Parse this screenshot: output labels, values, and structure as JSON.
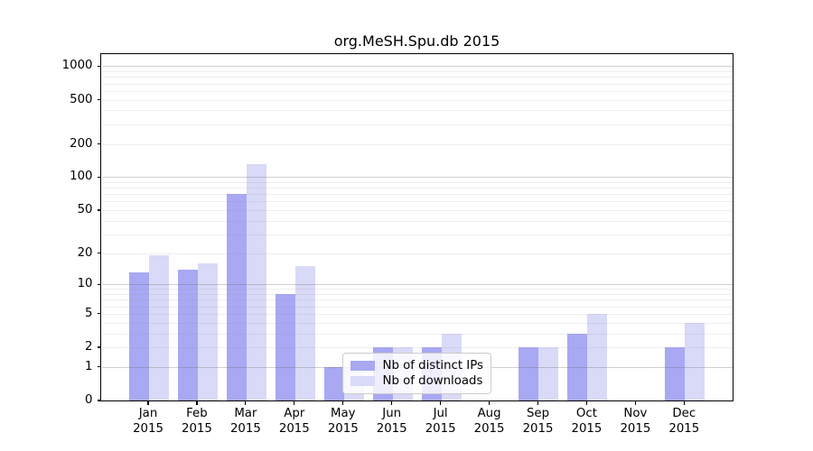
{
  "chart_data": {
    "type": "bar",
    "title": "org.MeSH.Spu.db 2015",
    "categories": [
      "Jan",
      "Feb",
      "Mar",
      "Apr",
      "May",
      "Jun",
      "Jul",
      "Aug",
      "Sep",
      "Oct",
      "Nov",
      "Dec"
    ],
    "year": "2015",
    "series": [
      {
        "name": "Nb of distinct IPs",
        "color": "#a8a8f3",
        "values": [
          13,
          14,
          70,
          8,
          1,
          2,
          2,
          0,
          2,
          3,
          0,
          2
        ]
      },
      {
        "name": "Nb of downloads",
        "color": "#d9d9f8",
        "values": [
          19,
          16,
          130,
          15,
          1,
          2,
          3,
          0,
          2,
          5,
          0,
          4
        ]
      }
    ],
    "yscale": "log1p",
    "yticks": [
      0,
      1,
      2,
      5,
      10,
      20,
      50,
      100,
      200,
      500,
      1000
    ],
    "ylim": [
      0,
      1284
    ],
    "xlabel": "",
    "ylabel": "",
    "grid": "horizontal; faint minor lines at 2-9 per decade, darker lines at powers of 10, drawn over bars",
    "legend_position": "inside plot, lower center",
    "colors": {
      "axis": "#000000",
      "grid_major": "rgba(110,110,110,0.33)",
      "grid_minor": "rgba(150,150,150,0.16)",
      "legend_border": "#cccccc",
      "legend_background": "rgba(255,255,255,0.8)"
    }
  }
}
